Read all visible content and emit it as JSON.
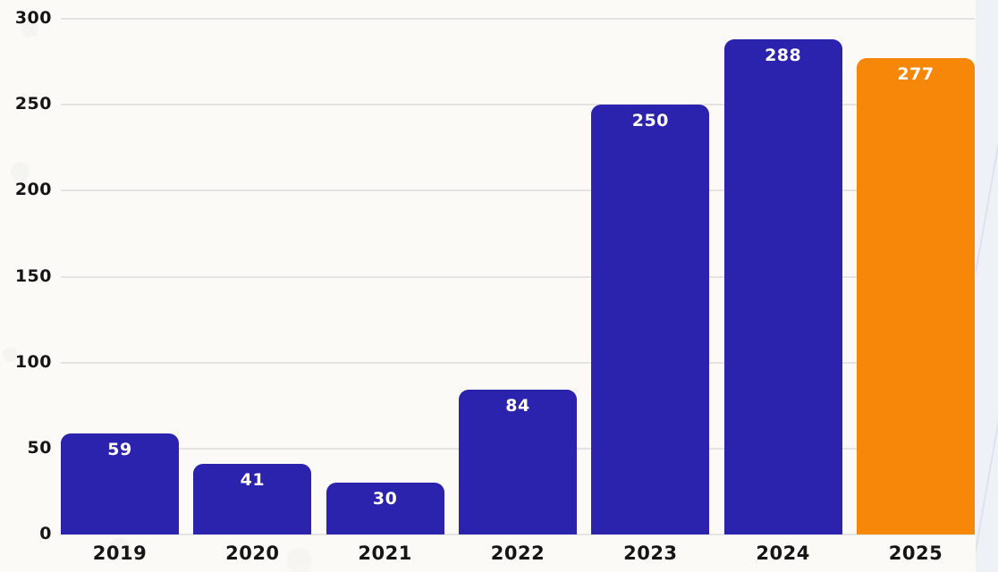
{
  "page": {
    "background_color": "#FBFAF7"
  },
  "decor": {
    "right_strip_color": "#EEF1F6",
    "right_strip_line_color": "#DDE2EE"
  },
  "chart_data": {
    "type": "bar",
    "title": "",
    "xlabel": "",
    "ylabel": "",
    "categories": [
      "2019",
      "2020",
      "2021",
      "2022",
      "2023",
      "2024",
      "2025"
    ],
    "values": [
      59,
      41,
      30,
      84,
      250,
      288,
      277
    ],
    "value_labels": [
      "59",
      "41",
      "30",
      "84",
      "250",
      "288",
      "277"
    ],
    "bar_color_keys": [
      "blue",
      "blue",
      "blue",
      "blue",
      "blue",
      "blue",
      "orange"
    ],
    "colors": {
      "blue": "#2B23AE",
      "orange": "#F78709",
      "gridline": "#E4E4E2",
      "axis_text": "#151515",
      "value_text": "#FFFFFF"
    },
    "ylim": [
      0,
      300
    ],
    "yticks": [
      0,
      50,
      100,
      150,
      200,
      250,
      300
    ],
    "ytick_labels": [
      "0",
      "50",
      "100",
      "150",
      "200",
      "250",
      "300"
    ],
    "grid": "horizontal",
    "legend": "none"
  }
}
